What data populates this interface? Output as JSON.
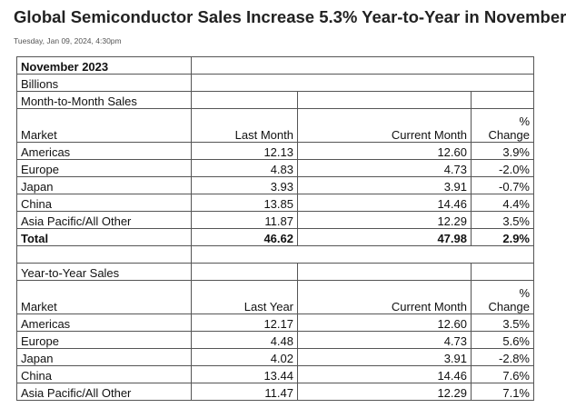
{
  "header": {
    "title": "Global Semiconductor Sales Increase 5.3% Year-to-Year in November",
    "timestamp": "Tuesday, Jan 09, 2024, 4:30pm"
  },
  "table": {
    "period": "November 2023",
    "unit": "Billions",
    "sections": [
      {
        "title": "Month-to-Month Sales",
        "columns": [
          "Market",
          "Last Month",
          "Current Month",
          "% Change"
        ],
        "rows": [
          [
            "Americas",
            "12.13",
            "12.60",
            "3.9%"
          ],
          [
            "Europe",
            "4.83",
            "4.73",
            "-2.0%"
          ],
          [
            "Japan",
            "3.93",
            "3.91",
            "-0.7%"
          ],
          [
            "China",
            "13.85",
            "14.46",
            "4.4%"
          ],
          [
            "Asia Pacific/All Other",
            "11.87",
            "12.29",
            "3.5%"
          ]
        ],
        "total": [
          "Total",
          "46.62",
          "47.98",
          "2.9%"
        ]
      },
      {
        "title": "Year-to-Year Sales",
        "columns": [
          "Market",
          "Last Year",
          "Current Month",
          "% Change"
        ],
        "rows": [
          [
            "Americas",
            "12.17",
            "12.60",
            "3.5%"
          ],
          [
            "Europe",
            "4.48",
            "4.73",
            "5.6%"
          ],
          [
            "Japan",
            "4.02",
            "3.91",
            "-2.8%"
          ],
          [
            "China",
            "13.44",
            "14.46",
            "7.6%"
          ],
          [
            "Asia Pacific/All Other",
            "11.47",
            "12.29",
            "7.1%"
          ]
        ]
      }
    ]
  }
}
